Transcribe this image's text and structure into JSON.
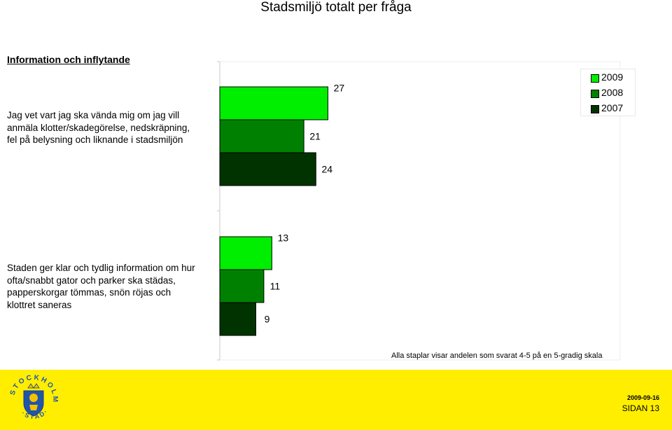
{
  "page_title": "Stadsmiljö totalt per fråga",
  "section_heading": "Information och inflytande",
  "footnote": "Alla staplar visar andelen som svarat 4-5 på en 5-gradig skala",
  "footer": {
    "date": "2009-09-16",
    "page_label": "SIDAN 13",
    "logo_text": "STOCKHOLMS STAD"
  },
  "colors": {
    "2009": "#00ee00",
    "2008": "#008000",
    "2007": "#003300",
    "footer_bg": "#ffee00"
  },
  "chart_data": {
    "type": "bar",
    "orientation": "horizontal",
    "categories": [
      "Jag vet vart jag ska vända mig om jag vill\nanmäla klotter/skadegörelse, nedskräpning,\nfel på belysning och liknande i stadsmiljön",
      "Staden ger klar och tydlig information om hur\nofta/snabbt gator och parker ska städas,\npapperskorgar tömmas, snön röjas och\nklottret saneras"
    ],
    "series": [
      {
        "name": "2009",
        "values": [
          27,
          13
        ]
      },
      {
        "name": "2008",
        "values": [
          21,
          11
        ]
      },
      {
        "name": "2007",
        "values": [
          24,
          9
        ]
      }
    ],
    "xlim": [
      0,
      100
    ],
    "grid": false,
    "legend_position": "top-right",
    "title": "",
    "xlabel": "",
    "ylabel": ""
  }
}
